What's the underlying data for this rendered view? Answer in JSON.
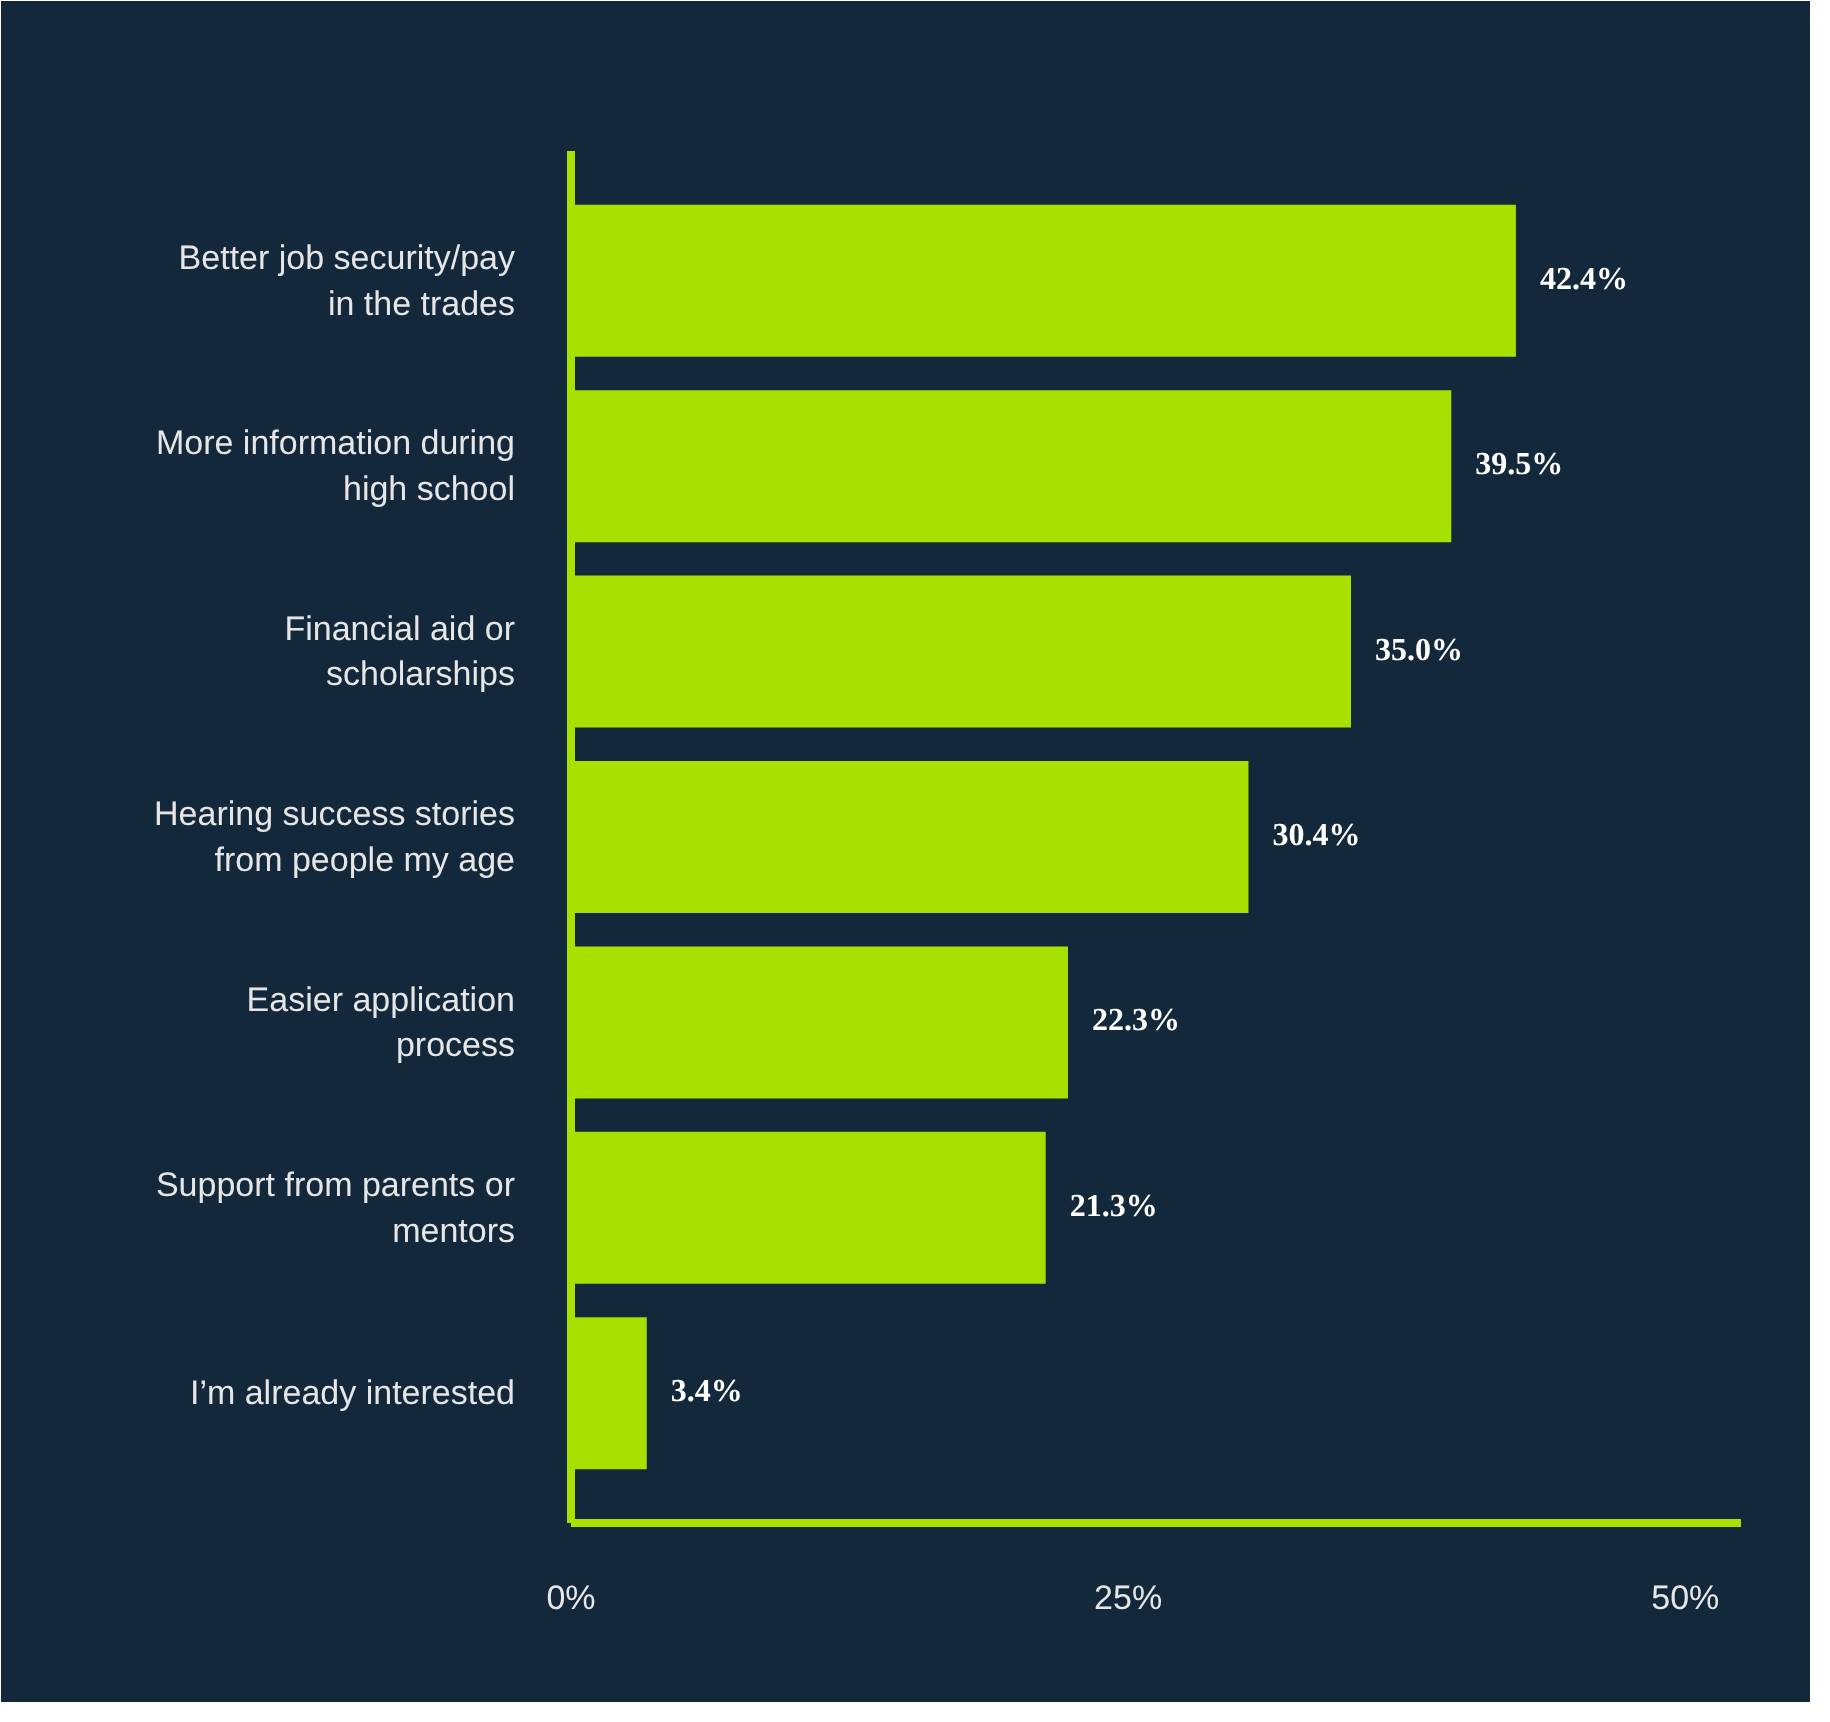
{
  "chart_data": {
    "type": "bar",
    "orientation": "horizontal",
    "categories": [
      "Better job security/pay in the trades",
      "More information during high school",
      "Financial aid or scholarships",
      "Hearing success stories from people my age",
      "Easier application process",
      "Support from parents or mentors",
      "I’m already interested"
    ],
    "values": [
      42.4,
      39.5,
      35.0,
      30.4,
      22.3,
      21.3,
      3.4
    ],
    "value_labels": [
      "42.4%",
      "39.5%",
      "35.0%",
      "30.4%",
      "22.3%",
      "21.3%",
      "3.4%"
    ],
    "color": "#a8e000",
    "xlim": [
      0,
      52.5
    ],
    "xticks": [
      {
        "value": 0,
        "label": "0%"
      },
      {
        "value": 25,
        "label": "25%"
      },
      {
        "value": 50,
        "label": "50%"
      }
    ],
    "grid": false
  }
}
